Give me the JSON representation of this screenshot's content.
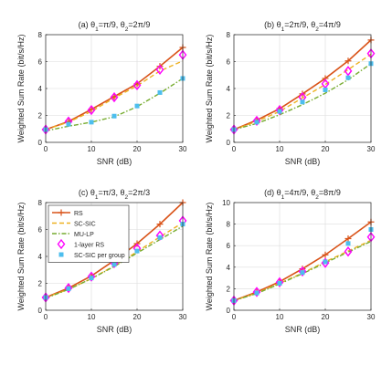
{
  "figure": {
    "ylabel": "Weighted Sum Rate (bit/s/Hz)",
    "xlabel": "SNR (dB)"
  },
  "legend": {
    "entries": [
      {
        "name": "RS",
        "color": "#d95319",
        "marker": "plus",
        "style": "solid"
      },
      {
        "name": "SC-SIC",
        "color": "#edb120",
        "marker": "none",
        "style": "dashed"
      },
      {
        "name": "MU-LP",
        "color": "#77ac30",
        "marker": "none",
        "style": "dashdot"
      },
      {
        "name": "1-layer RS",
        "color": "#ff00ff",
        "marker": "diamond",
        "style": "none"
      },
      {
        "name": "SC-SIC per group",
        "color": "#4dbeee",
        "marker": "square",
        "style": "none"
      }
    ]
  },
  "chart_data": [
    {
      "type": "line",
      "title_parts": [
        "(a) θ",
        "1",
        "=π/9, θ",
        "2",
        "=2π/9"
      ],
      "x": [
        0,
        5,
        10,
        15,
        20,
        25,
        30
      ],
      "xticks": [
        0,
        10,
        20,
        30
      ],
      "ylim": [
        0,
        8
      ],
      "yticks": [
        0,
        2,
        4,
        6,
        8
      ],
      "grid": true,
      "series": [
        {
          "name": "RS",
          "values": [
            0.95,
            1.55,
            2.45,
            3.4,
            4.35,
            5.65,
            7.05
          ]
        },
        {
          "name": "SC-SIC",
          "values": [
            0.95,
            1.5,
            2.3,
            3.3,
            4.2,
            5.3,
            6.05
          ]
        },
        {
          "name": "MU-LP",
          "values": [
            0.85,
            1.2,
            1.5,
            1.9,
            2.65,
            3.65,
            4.75
          ]
        },
        {
          "name": "1-layer RS",
          "values": [
            0.95,
            1.55,
            2.4,
            3.35,
            4.25,
            5.4,
            6.5
          ]
        },
        {
          "name": "SC-SIC per group",
          "values": [
            0.95,
            1.35,
            1.5,
            1.95,
            2.7,
            3.7,
            4.75
          ]
        }
      ]
    },
    {
      "type": "line",
      "title_parts": [
        "(b) θ",
        "1",
        "=2π/9, θ",
        "2",
        "=4π/9"
      ],
      "x": [
        0,
        5,
        10,
        15,
        20,
        25,
        30
      ],
      "xticks": [
        0,
        10,
        20,
        30
      ],
      "ylim": [
        0,
        8
      ],
      "yticks": [
        0,
        2,
        4,
        6,
        8
      ],
      "grid": true,
      "series": [
        {
          "name": "RS",
          "values": [
            0.95,
            1.65,
            2.5,
            3.6,
            4.75,
            6.05,
            7.6
          ]
        },
        {
          "name": "SC-SIC",
          "values": [
            0.95,
            1.55,
            2.3,
            3.3,
            4.3,
            5.4,
            6.55
          ]
        },
        {
          "name": "MU-LP",
          "values": [
            0.95,
            1.4,
            2.05,
            2.8,
            3.65,
            4.65,
            5.85
          ]
        },
        {
          "name": "1-layer RS",
          "values": [
            0.95,
            1.6,
            2.4,
            3.35,
            4.35,
            5.3,
            6.6
          ]
        },
        {
          "name": "SC-SIC per group",
          "values": [
            0.95,
            1.5,
            2.3,
            3.0,
            3.9,
            4.8,
            5.85
          ]
        }
      ]
    },
    {
      "type": "line",
      "title_parts": [
        "(c) θ",
        "1",
        "=π/3, θ",
        "2",
        "=2π/3"
      ],
      "x": [
        0,
        5,
        10,
        15,
        20,
        25,
        30
      ],
      "xticks": [
        0,
        10,
        20,
        30
      ],
      "ylim": [
        0,
        8
      ],
      "yticks": [
        0,
        2,
        4,
        6,
        8
      ],
      "grid": true,
      "series": [
        {
          "name": "RS",
          "values": [
            0.95,
            1.65,
            2.55,
            3.7,
            4.95,
            6.4,
            8.0
          ]
        },
        {
          "name": "SC-SIC",
          "values": [
            0.95,
            1.55,
            2.35,
            3.3,
            4.35,
            5.45,
            6.5
          ]
        },
        {
          "name": "MU-LP",
          "values": [
            0.9,
            1.55,
            2.35,
            3.25,
            4.25,
            5.25,
            6.25
          ]
        },
        {
          "name": "1-layer RS",
          "values": [
            0.95,
            1.65,
            2.5,
            3.5,
            4.6,
            5.55,
            6.65
          ]
        },
        {
          "name": "SC-SIC per group",
          "values": [
            0.95,
            1.6,
            2.4,
            3.4,
            4.4,
            5.4,
            6.4
          ]
        }
      ]
    },
    {
      "type": "line",
      "title_parts": [
        "(d) θ",
        "1",
        "=4π/9, θ",
        "2",
        "=8π/9"
      ],
      "x": [
        0,
        5,
        10,
        15,
        20,
        25,
        30
      ],
      "xticks": [
        0,
        10,
        20,
        30
      ],
      "ylim": [
        0,
        10
      ],
      "yticks": [
        0,
        2,
        4,
        6,
        8,
        10
      ],
      "grid": true,
      "series": [
        {
          "name": "RS",
          "values": [
            0.9,
            1.7,
            2.65,
            3.85,
            5.15,
            6.65,
            8.2
          ]
        },
        {
          "name": "SC-SIC",
          "values": [
            0.9,
            1.6,
            2.5,
            3.45,
            4.5,
            5.5,
            6.5
          ]
        },
        {
          "name": "MU-LP",
          "values": [
            0.9,
            1.55,
            2.45,
            3.4,
            4.4,
            5.4,
            6.4
          ]
        },
        {
          "name": "1-layer RS",
          "values": [
            0.9,
            1.7,
            2.6,
            3.6,
            4.4,
            5.45,
            6.8
          ]
        },
        {
          "name": "SC-SIC per group",
          "values": [
            0.9,
            1.6,
            2.5,
            3.5,
            4.5,
            6.2,
            7.5
          ]
        }
      ]
    }
  ]
}
